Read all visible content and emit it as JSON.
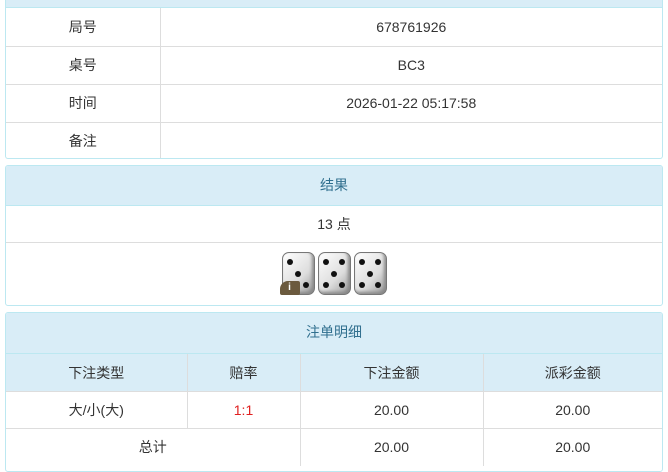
{
  "info": {
    "rows": [
      {
        "label": "局号",
        "value": "678761926"
      },
      {
        "label": "桌号",
        "value": "BC3"
      },
      {
        "label": "时间",
        "value": "2026-01-22 05:17:58"
      },
      {
        "label": "备注",
        "value": ""
      }
    ]
  },
  "result": {
    "title": "结果",
    "points": "13 点",
    "dice": [
      3,
      5,
      5
    ],
    "info_badge": "i"
  },
  "bets": {
    "title": "注单明细",
    "headers": [
      "下注类型",
      "赔率",
      "下注金额",
      "派彩金额"
    ],
    "rows": [
      {
        "type": "大/小(大)",
        "odds": "1:1",
        "bet": "20.00",
        "payout": "20.00"
      }
    ],
    "total": {
      "label": "总计",
      "bet": "20.00",
      "payout": "20.00"
    }
  }
}
